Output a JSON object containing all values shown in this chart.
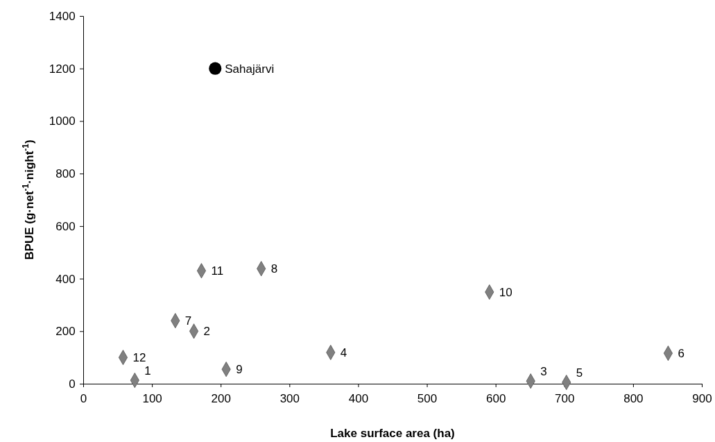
{
  "chart_data": {
    "type": "scatter",
    "xlabel": "Lake surface area (ha)",
    "ylabel": "BPUE (g·net$^{-1}$·night$^{-1}$)",
    "xlim": [
      0,
      900
    ],
    "xticks": [
      0,
      100,
      200,
      300,
      400,
      500,
      600,
      700,
      800,
      900
    ],
    "ylim": [
      0,
      1400
    ],
    "yticks": [
      0,
      200,
      400,
      600,
      800,
      1000,
      1200,
      1400
    ],
    "series": [
      {
        "color": "#808080",
        "marker": "diamond",
        "x": [
          58,
          75,
          134,
          161,
          172,
          259,
          208,
          360,
          591,
          651,
          703,
          851
        ],
        "values": [
          100,
          13,
          240,
          200,
          430,
          438,
          55,
          119,
          349,
          10,
          5,
          116
        ]
      },
      {
        "color": "#000000",
        "marker": "circle",
        "x": [
          192
        ],
        "values": [
          1200
        ]
      }
    ],
    "annotations": [
      {
        "text": "12",
        "x": 58,
        "y": 100
      },
      {
        "text": "1",
        "x": 75,
        "y": 13
      },
      {
        "text": "7",
        "x": 134,
        "y": 240
      },
      {
        "text": "2",
        "x": 161,
        "y": 200
      },
      {
        "text": "11",
        "x": 172,
        "y": 430
      },
      {
        "text": "8",
        "x": 259,
        "y": 438
      },
      {
        "text": "9",
        "x": 208,
        "y": 55
      },
      {
        "text": "4",
        "x": 360,
        "y": 119
      },
      {
        "text": "10",
        "x": 591,
        "y": 349
      },
      {
        "text": "3",
        "x": 651,
        "y": 10
      },
      {
        "text": "5",
        "x": 703,
        "y": 5
      },
      {
        "text": "6",
        "x": 851,
        "y": 116
      },
      {
        "text": "Sahajärvi",
        "x": 192,
        "y": 1200
      }
    ]
  }
}
